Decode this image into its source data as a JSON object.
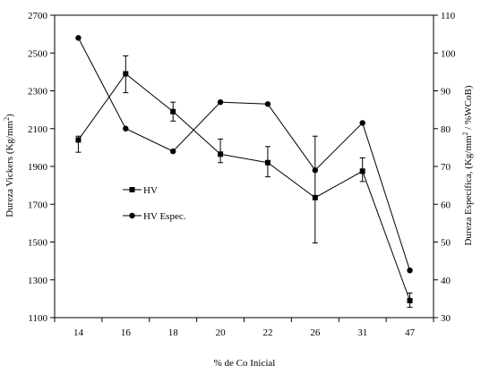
{
  "chart_data": {
    "type": "line",
    "title": "",
    "xlabel": "% de Co Inicial",
    "ylabel_left": "Dureza Vickers (Kg/mm",
    "ylabel_left_sup": "2",
    "ylabel_left_end": ")",
    "ylabel_right": "Dureza Específica, (Kg/mm",
    "ylabel_right_sup": "2",
    "ylabel_right_end": " / %WCoB)",
    "categories": [
      "14",
      "16",
      "18",
      "20",
      "22",
      "26",
      "31",
      "47"
    ],
    "ylim_left": [
      1100,
      2700
    ],
    "yticks_left": [
      1100,
      1300,
      1500,
      1700,
      1900,
      2100,
      2300,
      2500,
      2700
    ],
    "ylim_right": [
      30,
      110
    ],
    "yticks_right": [
      30,
      40,
      50,
      60,
      70,
      80,
      90,
      100,
      110
    ],
    "grid": false,
    "legend_position": "center-left",
    "series": [
      {
        "name": "HV",
        "axis": "left",
        "marker": "square",
        "values": [
          2040,
          2390,
          2190,
          1965,
          1920,
          1735,
          1875,
          1190
        ],
        "error_low": [
          1975,
          2290,
          2140,
          1920,
          1845,
          1495,
          1820,
          1155
        ],
        "error_high": [
          2060,
          2485,
          2240,
          2045,
          2005,
          2060,
          1945,
          1230
        ]
      },
      {
        "name": "HV Espec.",
        "axis": "right",
        "marker": "circle",
        "values": [
          104,
          80,
          74,
          87,
          86.5,
          69,
          81.5,
          42.5
        ]
      }
    ]
  }
}
